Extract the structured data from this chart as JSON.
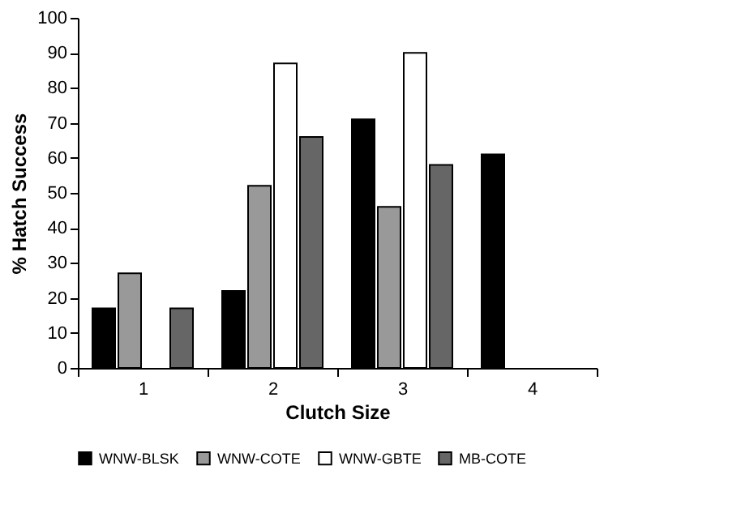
{
  "chart_data": {
    "type": "bar",
    "xlabel": "Clutch Size",
    "ylabel": "% Hatch Success",
    "categories": [
      "1",
      "2",
      "3",
      "4"
    ],
    "series": [
      {
        "name": "WNW-BLSK",
        "color": "#000000",
        "values": [
          17,
          22,
          71,
          61
        ]
      },
      {
        "name": "WNW-COTE",
        "color": "#999999",
        "values": [
          27,
          52,
          46,
          null
        ]
      },
      {
        "name": "WNW-GBTE",
        "color": "#ffffff",
        "values": [
          null,
          87,
          90,
          null
        ]
      },
      {
        "name": "MB-COTE",
        "color": "#666666",
        "values": [
          17,
          66,
          58,
          null
        ]
      }
    ],
    "ylim": [
      0,
      100
    ],
    "yticks": [
      0,
      10,
      20,
      30,
      40,
      50,
      60,
      70,
      80,
      90,
      100
    ],
    "grid": false,
    "legend": "bottom"
  }
}
